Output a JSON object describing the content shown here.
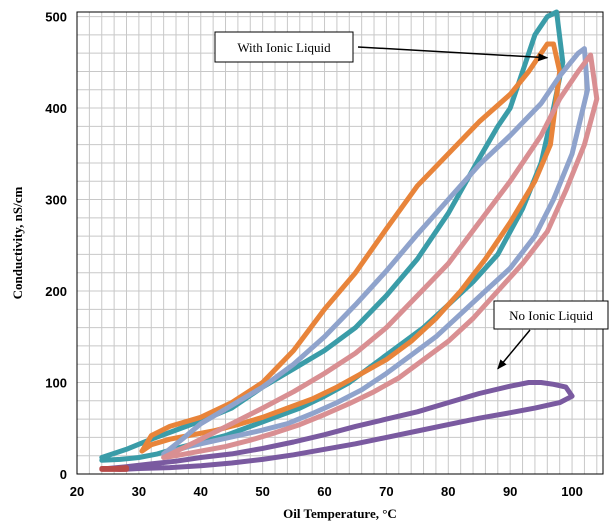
{
  "chart_data": {
    "type": "line",
    "title": "",
    "xlabel": "Oil Temperature, °C",
    "ylabel": "Conductivity,  nS/cm",
    "xlim": [
      20,
      105
    ],
    "ylim": [
      0,
      505
    ],
    "x_ticks": [
      20,
      30,
      40,
      50,
      60,
      70,
      80,
      90,
      100
    ],
    "y_ticks": [
      0,
      100,
      200,
      300,
      400,
      500
    ],
    "grid": true,
    "legend": "none",
    "annotations": [
      {
        "id": "with",
        "text": "With Ionic Liquid",
        "arrow_to": [
          96,
          455
        ]
      },
      {
        "id": "without",
        "text": "No Ionic Liquid",
        "arrow_to": [
          88,
          115
        ]
      }
    ],
    "series": [
      {
        "color": "#3a9ca8",
        "heat_x": [
          24,
          28,
          32,
          36,
          40,
          45,
          50,
          55,
          60,
          65,
          70,
          75,
          80,
          85,
          88,
          90,
          92,
          94,
          96,
          97.5
        ],
        "heat_y": [
          18,
          27,
          38,
          48,
          58,
          72,
          95,
          115,
          135,
          160,
          195,
          235,
          285,
          345,
          380,
          400,
          440,
          480,
          500,
          505
        ],
        "cool_x": [
          97.5,
          98.5,
          97,
          95,
          92,
          88,
          84,
          80,
          76,
          72,
          68,
          64,
          60,
          56,
          52,
          48,
          44,
          40,
          36,
          33,
          30,
          27,
          24
        ],
        "cool_y": [
          505,
          450,
          400,
          340,
          290,
          240,
          210,
          185,
          160,
          140,
          120,
          100,
          85,
          72,
          62,
          52,
          42,
          35,
          28,
          22,
          18,
          16,
          15
        ]
      },
      {
        "color": "#e8843a",
        "heat_x": [
          30.5,
          32,
          35,
          40,
          45,
          50,
          55,
          60,
          65,
          70,
          75,
          80,
          85,
          90,
          93,
          96,
          97
        ],
        "heat_y": [
          25,
          42,
          52,
          62,
          78,
          100,
          135,
          180,
          220,
          268,
          315,
          350,
          385,
          415,
          440,
          470,
          470
        ],
        "cool_x": [
          97,
          98,
          96.5,
          94,
          90,
          86,
          82,
          78,
          74,
          70,
          66,
          62,
          58,
          54,
          50,
          46,
          42,
          38,
          35,
          32,
          30.5
        ],
        "cool_y": [
          470,
          440,
          360,
          320,
          275,
          235,
          200,
          170,
          145,
          125,
          110,
          95,
          82,
          72,
          62,
          54,
          47,
          42,
          38,
          32,
          25
        ]
      },
      {
        "color": "#8fa3cc",
        "heat_x": [
          34,
          37,
          40,
          45,
          50,
          55,
          60,
          65,
          70,
          75,
          80,
          85,
          90,
          95,
          98,
          101,
          102
        ],
        "heat_y": [
          22,
          38,
          55,
          75,
          95,
          120,
          150,
          185,
          222,
          262,
          300,
          338,
          370,
          405,
          435,
          460,
          465
        ],
        "cool_x": [
          102,
          102.5,
          100,
          97,
          94,
          90,
          86,
          82,
          78,
          74,
          70,
          66,
          62,
          58,
          54,
          50,
          46,
          42,
          38,
          34
        ],
        "cool_y": [
          465,
          420,
          350,
          300,
          260,
          225,
          200,
          175,
          150,
          130,
          110,
          92,
          78,
          66,
          55,
          48,
          42,
          36,
          30,
          22
        ]
      },
      {
        "color": "#d98f92",
        "heat_x": [
          34,
          40,
          45,
          50,
          55,
          60,
          65,
          70,
          75,
          80,
          85,
          90,
          95,
          98,
          101,
          103
        ],
        "heat_y": [
          18,
          38,
          55,
          72,
          90,
          110,
          132,
          160,
          195,
          230,
          275,
          320,
          370,
          410,
          440,
          458
        ],
        "cool_x": [
          103,
          104,
          102,
          99,
          96,
          92,
          88,
          84,
          80,
          76,
          72,
          68,
          64,
          60,
          56,
          52,
          48,
          44,
          40,
          36,
          34
        ],
        "cool_y": [
          458,
          410,
          360,
          310,
          265,
          230,
          200,
          170,
          145,
          125,
          105,
          90,
          77,
          65,
          54,
          45,
          37,
          30,
          25,
          20,
          18
        ]
      },
      {
        "color": "#7a5aa0",
        "heat_x": [
          25,
          28,
          32,
          36,
          40,
          45,
          50,
          55,
          60,
          65,
          70,
          75,
          80,
          85,
          90,
          93,
          95,
          97,
          99
        ],
        "heat_y": [
          6,
          8,
          11,
          14,
          18,
          22,
          28,
          35,
          43,
          52,
          60,
          68,
          78,
          88,
          96,
          100,
          100,
          98,
          95
        ],
        "cool_x": [
          99,
          100,
          98,
          94,
          90,
          85,
          80,
          75,
          70,
          65,
          60,
          55,
          50,
          45,
          40,
          35,
          30,
          27,
          25
        ],
        "cool_y": [
          95,
          85,
          78,
          72,
          67,
          61,
          54,
          47,
          40,
          33,
          27,
          21,
          16,
          12,
          9,
          7,
          6,
          5,
          6
        ]
      },
      {
        "color": "#b84a48",
        "heat_x": [
          24,
          26,
          28
        ],
        "heat_y": [
          6,
          6,
          7
        ],
        "cool_x": [
          28,
          26,
          24
        ],
        "cool_y": [
          5,
          5,
          5
        ]
      }
    ]
  }
}
